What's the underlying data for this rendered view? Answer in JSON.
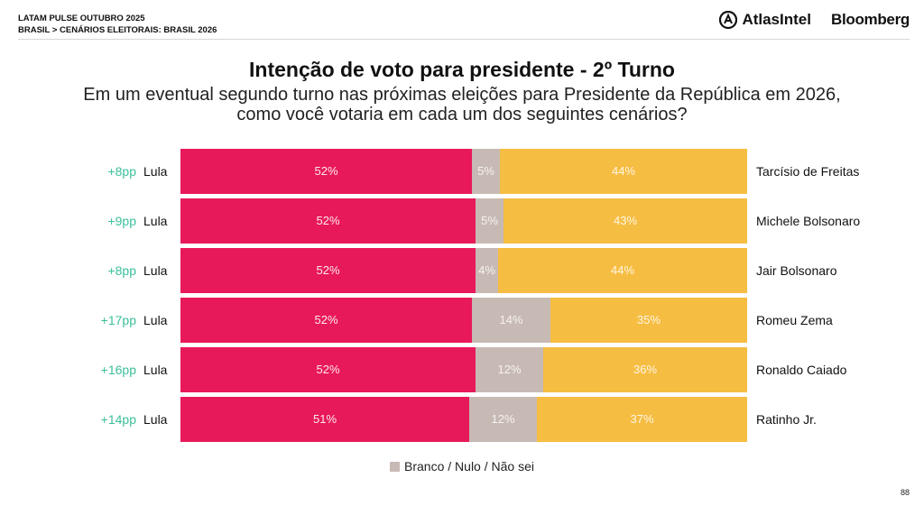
{
  "header": {
    "line1": "LATAM PULSE OUTUBRO 2025",
    "line2": "BRASIL > CENÁRIOS ELEITORAIS: BRASIL 2026",
    "brand1": "AtlasIntel",
    "brand2": "Bloomberg"
  },
  "title": "Intenção de voto para presidente - 2º Turno",
  "subtitle_line1": "Em um eventual segundo turno nas próximas eleições para Presidente da República em 2026,",
  "subtitle_line2": "como você votaria em cada um dos seguintes cenários?",
  "page_number": "88",
  "colors": {
    "lula": "#e8195a",
    "blank": "#c7bab4",
    "opponent": "#f6bd43",
    "diff": "#3bbf9b"
  },
  "chart_data": {
    "type": "bar",
    "orientation": "horizontal",
    "stacked": true,
    "categories": [
      "Tarcísio de Freitas",
      "Michele Bolsonaro",
      "Jair Bolsonaro",
      "Romeu Zema",
      "Ronaldo Caiado",
      "Ratinho Jr."
    ],
    "left_label": "Lula",
    "differences": [
      "+8pp",
      "+9pp",
      "+8pp",
      "+17pp",
      "+16pp",
      "+14pp"
    ],
    "series": [
      {
        "name": "Lula",
        "values": [
          52,
          52,
          52,
          52,
          52,
          51
        ]
      },
      {
        "name": "Branco / Nulo / Não sei",
        "values": [
          5,
          5,
          4,
          14,
          12,
          12
        ]
      },
      {
        "values": [
          44,
          43,
          44,
          35,
          36,
          37
        ]
      }
    ],
    "legend": {
      "label": "Branco / Nulo / Não sei",
      "position": "bottom-center"
    },
    "grid": false
  }
}
